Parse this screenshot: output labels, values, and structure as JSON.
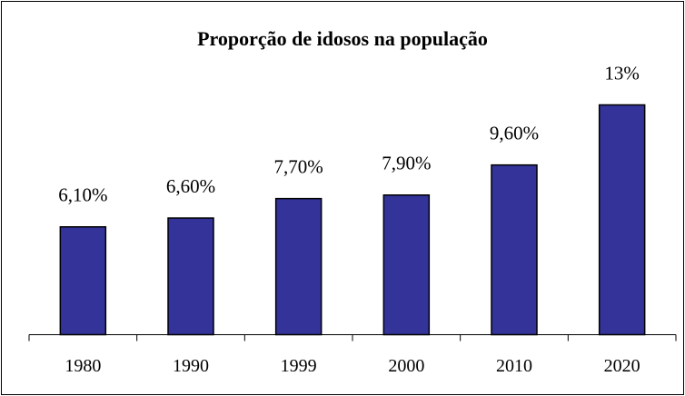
{
  "chart_data": {
    "type": "bar",
    "title": "Proporção de idosos na população",
    "categories": [
      "1980",
      "1990",
      "1999",
      "2000",
      "2010",
      "2020"
    ],
    "values": [
      6.1,
      6.6,
      7.7,
      7.9,
      9.6,
      13
    ],
    "value_labels": [
      "6,10%",
      "6,60%",
      "7,70%",
      "7,90%",
      "9,60%",
      "13%"
    ],
    "color": "#333399"
  }
}
